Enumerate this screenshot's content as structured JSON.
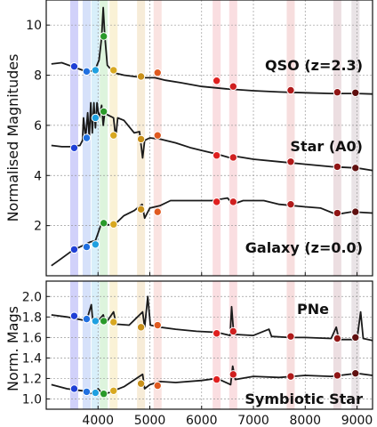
{
  "chart_data": [
    {
      "type": "line",
      "panel": "top",
      "ylabel": "Normalised Magnitudes",
      "xlim": [
        3000,
        9300
      ],
      "ylim": [
        0.0,
        11.0
      ],
      "yticks": [
        2,
        4,
        6,
        8,
        10
      ],
      "grid": true,
      "filter_bands": [
        {
          "center": 3540,
          "color": "#7b7bf0"
        },
        {
          "center": 3780,
          "color": "#8aa8f0"
        },
        {
          "center": 3950,
          "color": "#8fd0f0"
        },
        {
          "center": 4110,
          "color": "#9ee09e"
        },
        {
          "center": 4300,
          "color": "#f2d98a"
        },
        {
          "center": 4830,
          "color": "#e8c890"
        },
        {
          "center": 5150,
          "color": "#f0b0a8"
        },
        {
          "center": 6290,
          "color": "#f0a0a8"
        },
        {
          "center": 6610,
          "color": "#f0a0a8"
        },
        {
          "center": 7720,
          "color": "#e8a0a0"
        },
        {
          "center": 8620,
          "color": "#c8a0a8"
        },
        {
          "center": 8970,
          "color": "#c0b0b8"
        }
      ],
      "series": [
        {
          "name": "QSO (z=2.3)",
          "spectrum": [
            [
              3100,
              8.45
            ],
            [
              3300,
              8.5
            ],
            [
              3500,
              8.35
            ],
            [
              3700,
              8.2
            ],
            [
              3850,
              8.15
            ],
            [
              3950,
              8.25
            ],
            [
              4020,
              8.6
            ],
            [
              4070,
              9.5
            ],
            [
              4100,
              10.7
            ],
            [
              4130,
              9.6
            ],
            [
              4180,
              8.4
            ],
            [
              4300,
              8.1
            ],
            [
              4500,
              8.0
            ],
            [
              4700,
              7.95
            ],
            [
              4900,
              7.9
            ],
            [
              5100,
              7.9
            ],
            [
              5300,
              7.8
            ],
            [
              5600,
              7.7
            ],
            [
              6000,
              7.55
            ],
            [
              6500,
              7.45
            ],
            [
              7000,
              7.38
            ],
            [
              7500,
              7.33
            ],
            [
              8000,
              7.3
            ],
            [
              8500,
              7.27
            ],
            [
              9000,
              7.27
            ],
            [
              9300,
              7.25
            ]
          ],
          "points": [
            {
              "x": 3540,
              "y": 8.35,
              "color": "#1f3fd6"
            },
            {
              "x": 3780,
              "y": 8.15,
              "color": "#1f6fe0"
            },
            {
              "x": 3950,
              "y": 8.2,
              "color": "#1fa0e0"
            },
            {
              "x": 4110,
              "y": 9.55,
              "color": "#2a9a2a"
            },
            {
              "x": 4300,
              "y": 8.2,
              "color": "#d8a820"
            },
            {
              "x": 4830,
              "y": 7.95,
              "color": "#c8901a"
            },
            {
              "x": 5150,
              "y": 8.1,
              "color": "#e05a20"
            },
            {
              "x": 6290,
              "y": 7.78,
              "color": "#e01f1f"
            },
            {
              "x": 6610,
              "y": 7.55,
              "color": "#d01f1f"
            },
            {
              "x": 7720,
              "y": 7.4,
              "color": "#b01a1a"
            },
            {
              "x": 8620,
              "y": 7.32,
              "color": "#901515"
            },
            {
              "x": 8970,
              "y": 7.3,
              "color": "#601010"
            }
          ]
        },
        {
          "name": "Star (A0)",
          "spectrum": [
            [
              3100,
              5.2
            ],
            [
              3300,
              5.15
            ],
            [
              3500,
              5.15
            ],
            [
              3650,
              5.2
            ],
            [
              3700,
              5.4
            ],
            [
              3720,
              6.3
            ],
            [
              3760,
              5.5
            ],
            [
              3800,
              6.5
            ],
            [
              3830,
              5.5
            ],
            [
              3860,
              6.9
            ],
            [
              3890,
              5.7
            ],
            [
              3920,
              6.9
            ],
            [
              3950,
              5.9
            ],
            [
              3980,
              6.9
            ],
            [
              4020,
              6.3
            ],
            [
              4070,
              6.8
            ],
            [
              4100,
              6.0
            ],
            [
              4130,
              6.5
            ],
            [
              4200,
              6.4
            ],
            [
              4300,
              6.3
            ],
            [
              4340,
              5.5
            ],
            [
              4380,
              6.3
            ],
            [
              4500,
              6.2
            ],
            [
              4700,
              5.7
            ],
            [
              4800,
              5.75
            ],
            [
              4860,
              4.7
            ],
            [
              4900,
              5.4
            ],
            [
              5000,
              5.5
            ],
            [
              5200,
              5.45
            ],
            [
              5500,
              5.3
            ],
            [
              5800,
              5.1
            ],
            [
              6000,
              5.0
            ],
            [
              6300,
              4.85
            ],
            [
              6560,
              4.7
            ],
            [
              6700,
              4.75
            ],
            [
              7000,
              4.65
            ],
            [
              7500,
              4.55
            ],
            [
              8000,
              4.45
            ],
            [
              8500,
              4.35
            ],
            [
              9000,
              4.3
            ],
            [
              9300,
              4.2
            ]
          ],
          "points": [
            {
              "x": 3540,
              "y": 5.1,
              "color": "#1f3fd6"
            },
            {
              "x": 3780,
              "y": 5.5,
              "color": "#1f6fe0"
            },
            {
              "x": 3950,
              "y": 6.3,
              "color": "#1fa0e0"
            },
            {
              "x": 4110,
              "y": 6.55,
              "color": "#2a9a2a"
            },
            {
              "x": 4300,
              "y": 5.6,
              "color": "#d8a820"
            },
            {
              "x": 4830,
              "y": 5.45,
              "color": "#c8901a"
            },
            {
              "x": 5150,
              "y": 5.6,
              "color": "#e05a20"
            },
            {
              "x": 6290,
              "y": 4.8,
              "color": "#e01f1f"
            },
            {
              "x": 6610,
              "y": 4.72,
              "color": "#d01f1f"
            },
            {
              "x": 7720,
              "y": 4.55,
              "color": "#b01a1a"
            },
            {
              "x": 8620,
              "y": 4.35,
              "color": "#901515"
            },
            {
              "x": 8970,
              "y": 4.3,
              "color": "#601010"
            }
          ]
        },
        {
          "name": "Galaxy (z=0.0)",
          "spectrum": [
            [
              3100,
              0.4
            ],
            [
              3300,
              0.7
            ],
            [
              3500,
              1.0
            ],
            [
              3700,
              1.2
            ],
            [
              3850,
              1.35
            ],
            [
              3950,
              1.4
            ],
            [
              4000,
              1.7
            ],
            [
              4050,
              2.0
            ],
            [
              4150,
              2.05
            ],
            [
              4300,
              2.0
            ],
            [
              4500,
              2.4
            ],
            [
              4700,
              2.6
            ],
            [
              4850,
              2.85
            ],
            [
              4900,
              2.3
            ],
            [
              5000,
              2.7
            ],
            [
              5200,
              2.8
            ],
            [
              5400,
              3.0
            ],
            [
              5800,
              3.0
            ],
            [
              6200,
              3.0
            ],
            [
              6500,
              3.1
            ],
            [
              6600,
              2.85
            ],
            [
              6800,
              3.0
            ],
            [
              7200,
              3.0
            ],
            [
              7500,
              2.85
            ],
            [
              8000,
              2.75
            ],
            [
              8300,
              2.7
            ],
            [
              8600,
              2.45
            ],
            [
              8900,
              2.55
            ],
            [
              9300,
              2.5
            ]
          ],
          "points": [
            {
              "x": 3540,
              "y": 1.05,
              "color": "#1f3fd6"
            },
            {
              "x": 3780,
              "y": 1.15,
              "color": "#1f6fe0"
            },
            {
              "x": 3950,
              "y": 1.25,
              "color": "#1fa0e0"
            },
            {
              "x": 4110,
              "y": 2.1,
              "color": "#2a9a2a"
            },
            {
              "x": 4300,
              "y": 2.05,
              "color": "#d8a820"
            },
            {
              "x": 4830,
              "y": 2.65,
              "color": "#c8901a"
            },
            {
              "x": 5150,
              "y": 2.55,
              "color": "#e05a20"
            },
            {
              "x": 6290,
              "y": 2.95,
              "color": "#e01f1f"
            },
            {
              "x": 6610,
              "y": 2.95,
              "color": "#d01f1f"
            },
            {
              "x": 7720,
              "y": 2.85,
              "color": "#b01a1a"
            },
            {
              "x": 8620,
              "y": 2.5,
              "color": "#901515"
            },
            {
              "x": 8970,
              "y": 2.55,
              "color": "#601010"
            }
          ]
        }
      ]
    },
    {
      "type": "line",
      "panel": "bottom",
      "ylabel": "Norm. Mags",
      "xlim": [
        3000,
        9300
      ],
      "ylim": [
        0.9,
        2.15
      ],
      "xticks": [
        4000,
        5000,
        6000,
        7000,
        8000,
        9000
      ],
      "yticks": [
        1.0,
        1.2,
        1.4,
        1.6,
        1.8,
        2.0
      ],
      "grid": true,
      "series": [
        {
          "name": "PNe",
          "spectrum": [
            [
              3100,
              1.82
            ],
            [
              3400,
              1.8
            ],
            [
              3700,
              1.77
            ],
            [
              3800,
              1.8
            ],
            [
              3870,
              1.92
            ],
            [
              3900,
              1.75
            ],
            [
              4000,
              1.76
            ],
            [
              4100,
              1.82
            ],
            [
              4150,
              1.74
            ],
            [
              4300,
              1.85
            ],
            [
              4350,
              1.73
            ],
            [
              4600,
              1.72
            ],
            [
              4860,
              1.85
            ],
            [
              4900,
              1.7
            ],
            [
              4960,
              2.0
            ],
            [
              5010,
              1.72
            ],
            [
              5200,
              1.7
            ],
            [
              5500,
              1.68
            ],
            [
              5900,
              1.66
            ],
            [
              6300,
              1.65
            ],
            [
              6550,
              1.62
            ],
            [
              6580,
              1.9
            ],
            [
              6620,
              1.63
            ],
            [
              7000,
              1.62
            ],
            [
              7300,
              1.68
            ],
            [
              7350,
              1.61
            ],
            [
              7700,
              1.6
            ],
            [
              8000,
              1.6
            ],
            [
              8500,
              1.59
            ],
            [
              8600,
              1.7
            ],
            [
              8650,
              1.58
            ],
            [
              9000,
              1.58
            ],
            [
              9070,
              1.85
            ],
            [
              9120,
              1.59
            ],
            [
              9300,
              1.57
            ]
          ],
          "points": [
            {
              "x": 3540,
              "y": 1.81,
              "color": "#1f3fd6"
            },
            {
              "x": 3780,
              "y": 1.78,
              "color": "#1f6fe0"
            },
            {
              "x": 3950,
              "y": 1.76,
              "color": "#1fa0e0"
            },
            {
              "x": 4110,
              "y": 1.76,
              "color": "#2a9a2a"
            },
            {
              "x": 4300,
              "y": 1.75,
              "color": "#d8a820"
            },
            {
              "x": 4830,
              "y": 1.7,
              "color": "#c8901a"
            },
            {
              "x": 5150,
              "y": 1.72,
              "color": "#e05a20"
            },
            {
              "x": 6290,
              "y": 1.64,
              "color": "#e01f1f"
            },
            {
              "x": 6610,
              "y": 1.66,
              "color": "#d01f1f"
            },
            {
              "x": 7720,
              "y": 1.61,
              "color": "#b01a1a"
            },
            {
              "x": 8620,
              "y": 1.59,
              "color": "#901515"
            },
            {
              "x": 8970,
              "y": 1.6,
              "color": "#601010"
            }
          ]
        },
        {
          "name": "Symbiotic Star",
          "spectrum": [
            [
              3100,
              1.14
            ],
            [
              3400,
              1.1
            ],
            [
              3700,
              1.08
            ],
            [
              3900,
              1.05
            ],
            [
              4000,
              1.1
            ],
            [
              4100,
              1.04
            ],
            [
              4300,
              1.08
            ],
            [
              4500,
              1.12
            ],
            [
              4860,
              1.24
            ],
            [
              4900,
              1.1
            ],
            [
              5000,
              1.14
            ],
            [
              5200,
              1.17
            ],
            [
              5500,
              1.16
            ],
            [
              6000,
              1.18
            ],
            [
              6300,
              1.2
            ],
            [
              6560,
              1.14
            ],
            [
              6600,
              1.32
            ],
            [
              6650,
              1.19
            ],
            [
              7000,
              1.22
            ],
            [
              7500,
              1.21
            ],
            [
              8000,
              1.23
            ],
            [
              8500,
              1.22
            ],
            [
              9000,
              1.25
            ],
            [
              9300,
              1.23
            ]
          ],
          "points": [
            {
              "x": 3540,
              "y": 1.1,
              "color": "#1f3fd6"
            },
            {
              "x": 3780,
              "y": 1.07,
              "color": "#1f6fe0"
            },
            {
              "x": 3950,
              "y": 1.06,
              "color": "#1fa0e0"
            },
            {
              "x": 4110,
              "y": 1.05,
              "color": "#2a9a2a"
            },
            {
              "x": 4300,
              "y": 1.08,
              "color": "#d8a820"
            },
            {
              "x": 4830,
              "y": 1.15,
              "color": "#c8901a"
            },
            {
              "x": 5150,
              "y": 1.13,
              "color": "#e05a20"
            },
            {
              "x": 6290,
              "y": 1.19,
              "color": "#e01f1f"
            },
            {
              "x": 6610,
              "y": 1.24,
              "color": "#d01f1f"
            },
            {
              "x": 7720,
              "y": 1.22,
              "color": "#b01a1a"
            },
            {
              "x": 8620,
              "y": 1.23,
              "color": "#901515"
            },
            {
              "x": 8970,
              "y": 1.25,
              "color": "#601010"
            }
          ]
        }
      ]
    }
  ]
}
